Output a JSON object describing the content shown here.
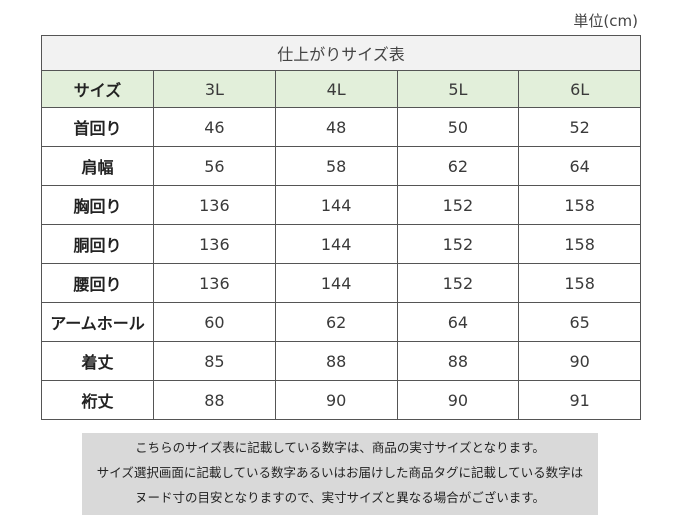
{
  "unit_label": "単位(cm)",
  "table": {
    "title": "仕上がりサイズ表",
    "header_label": "サイズ",
    "sizes": [
      "3L",
      "4L",
      "5L",
      "6L"
    ],
    "rows": [
      {
        "label": "首回り",
        "values": [
          "46",
          "48",
          "50",
          "52"
        ]
      },
      {
        "label": "肩幅",
        "values": [
          "56",
          "58",
          "62",
          "64"
        ]
      },
      {
        "label": "胸回り",
        "values": [
          "136",
          "144",
          "152",
          "158"
        ]
      },
      {
        "label": "胴回り",
        "values": [
          "136",
          "144",
          "152",
          "158"
        ]
      },
      {
        "label": "腰回り",
        "values": [
          "136",
          "144",
          "152",
          "158"
        ]
      },
      {
        "label": "アームホール",
        "values": [
          "60",
          "62",
          "64",
          "65"
        ]
      },
      {
        "label": "着丈",
        "values": [
          "85",
          "88",
          "88",
          "90"
        ]
      },
      {
        "label": "裄丈",
        "values": [
          "88",
          "90",
          "90",
          "91"
        ]
      }
    ]
  },
  "notes": [
    "こちらのサイズ表に記載している数字は、商品の実寸サイズとなります。",
    "サイズ選択画面に記載している数字あるいはお届けした商品タグに記載している数字は",
    "ヌード寸の目安となりますので、実寸サイズと異なる場合がございます。"
  ]
}
